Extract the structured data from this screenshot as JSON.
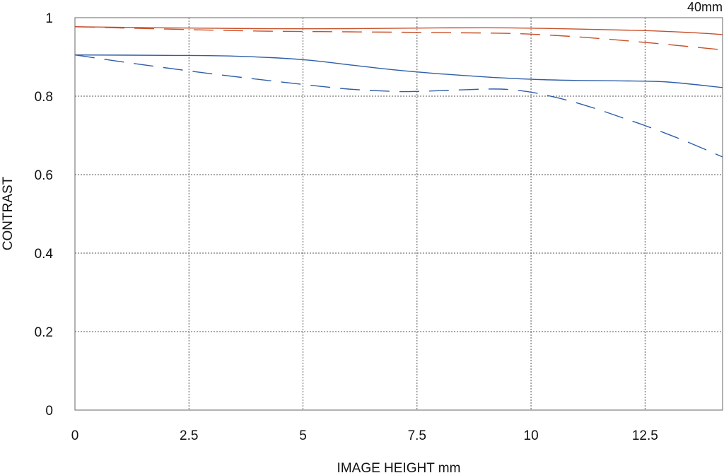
{
  "chart_data": {
    "type": "line",
    "title": "",
    "annotation": "40mm",
    "xlabel": "IMAGE HEIGHT  mm",
    "ylabel": "CONTRAST",
    "xlim": [
      0,
      14.2
    ],
    "ylim": [
      0,
      1
    ],
    "xticks": [
      0,
      2.5,
      5,
      7.5,
      10,
      12.5
    ],
    "xtick_labels": [
      "0",
      "2.5",
      "5",
      "7.5",
      "10",
      "12.5"
    ],
    "yticks": [
      0,
      0.2,
      0.4,
      0.6,
      0.8,
      1
    ],
    "ytick_labels": [
      "0",
      "0.2",
      "0.4",
      "0.6",
      "0.8",
      "1"
    ],
    "grid": true,
    "series": [
      {
        "color": "#c8502a",
        "dash": "solid",
        "x": [
          0,
          2,
          4,
          6,
          8,
          9.5,
          11,
          12.5,
          13.5,
          14.2
        ],
        "y": [
          0.977,
          0.974,
          0.972,
          0.972,
          0.974,
          0.974,
          0.971,
          0.967,
          0.962,
          0.957
        ]
      },
      {
        "color": "#c8502a",
        "dash": "dashed",
        "x": [
          0,
          2,
          4,
          6,
          8,
          9.5,
          10.5,
          11.5,
          12.5,
          13.5,
          14.2
        ],
        "y": [
          0.977,
          0.971,
          0.966,
          0.964,
          0.962,
          0.96,
          0.955,
          0.947,
          0.937,
          0.926,
          0.918
        ]
      },
      {
        "color": "#2f5ea8",
        "dash": "solid",
        "x": [
          0,
          2,
          3.5,
          5,
          6,
          7,
          8,
          9,
          10,
          11,
          12,
          13,
          14.2
        ],
        "y": [
          0.905,
          0.904,
          0.902,
          0.893,
          0.88,
          0.867,
          0.857,
          0.849,
          0.843,
          0.84,
          0.839,
          0.836,
          0.822
        ]
      },
      {
        "color": "#2f5ea8",
        "dash": "dashed",
        "x": [
          0,
          1,
          2,
          3,
          4,
          5,
          6,
          7,
          7.5,
          8,
          9,
          9.5,
          10,
          10.5,
          11,
          11.5,
          12,
          12.5,
          13,
          13.5,
          14.2
        ],
        "y": [
          0.905,
          0.888,
          0.872,
          0.857,
          0.843,
          0.83,
          0.818,
          0.812,
          0.812,
          0.814,
          0.818,
          0.817,
          0.81,
          0.798,
          0.783,
          0.765,
          0.745,
          0.725,
          0.703,
          0.68,
          0.645
        ]
      }
    ]
  }
}
